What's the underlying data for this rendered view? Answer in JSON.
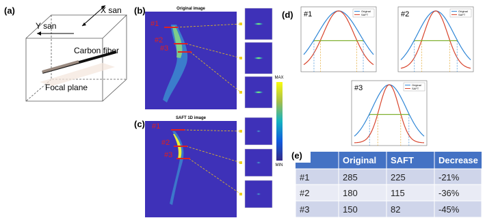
{
  "panel_a": {
    "label": "(a)",
    "x_scan": "X san",
    "y_scan": "Y san",
    "fiber": "Carbon fiber",
    "plane": "Focal plane"
  },
  "panel_b": {
    "label": "(b)",
    "title": "Original image",
    "markers": [
      "#1",
      "#2",
      "#3"
    ]
  },
  "colorbar": {
    "max": "MAX",
    "min": "MIN"
  },
  "panel_c": {
    "label": "(c)",
    "title": "SAFT 1D image",
    "markers": [
      "#1",
      "#2",
      "#3"
    ]
  },
  "panel_d": {
    "label": "(d)",
    "plots": [
      {
        "label": "#1"
      },
      {
        "label": "#2"
      },
      {
        "label": "#3"
      }
    ],
    "legend": [
      "Original",
      "SAFT"
    ]
  },
  "panel_e": {
    "label": "(e)",
    "table": {
      "header": [
        "Original",
        "SAFT",
        "Decrease"
      ],
      "rows": [
        [
          "#1",
          "285",
          "225",
          "-21%"
        ],
        [
          "#2",
          "180",
          "115",
          "-36%"
        ],
        [
          "#3",
          "150",
          "82",
          "-45%"
        ]
      ]
    }
  }
}
